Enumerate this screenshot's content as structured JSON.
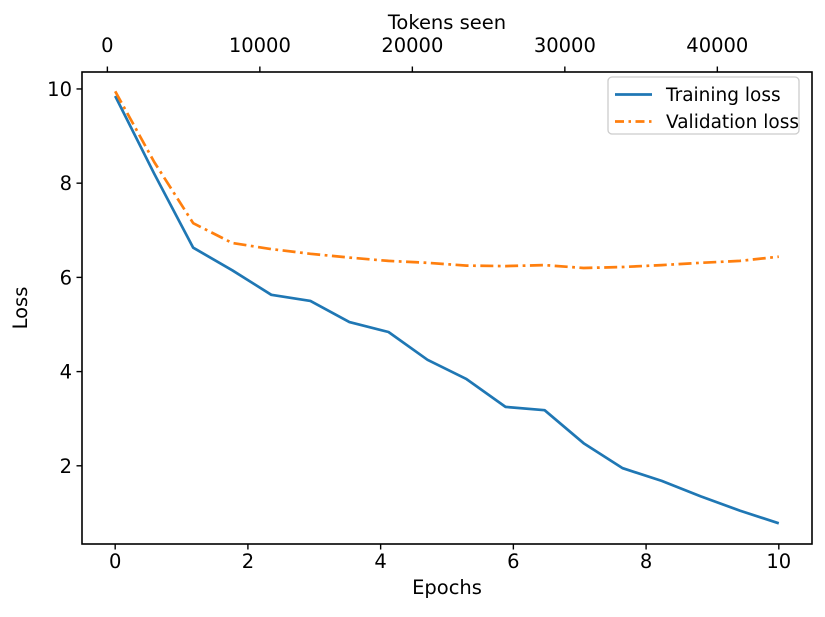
{
  "figure": {
    "background": "#ffffff",
    "text_color": "#000000",
    "spine_color": "#000000",
    "legend_border_color": "#cccccc"
  },
  "chart_data": {
    "type": "line",
    "title": "",
    "top_axis": {
      "label": "Tokens seen",
      "ticks": [
        0,
        10000,
        20000,
        30000,
        40000
      ],
      "tick_labels": [
        "0",
        "10000",
        "20000",
        "30000",
        "40000"
      ],
      "range": [
        -1664,
        46208
      ]
    },
    "x_axis": {
      "label": "Epochs",
      "ticks": [
        0,
        2,
        4,
        6,
        8,
        10
      ],
      "tick_labels": [
        "0",
        "2",
        "4",
        "6",
        "8",
        "10"
      ],
      "range": [
        -0.5,
        10.5
      ]
    },
    "y_axis": {
      "label": "Loss",
      "ticks": [
        2,
        4,
        6,
        8,
        10
      ],
      "tick_labels": [
        "2",
        "4",
        "6",
        "8",
        "10"
      ],
      "range": [
        0.34,
        10.36
      ]
    },
    "x": [
      0,
      0.588,
      1.176,
      1.765,
      2.353,
      2.941,
      3.529,
      4.118,
      4.706,
      5.294,
      5.882,
      6.471,
      7.059,
      7.647,
      8.235,
      8.824,
      9.412,
      10.0
    ],
    "series": [
      {
        "name": "Training loss",
        "color": "#1f77b4",
        "style": "solid",
        "values": [
          9.85,
          8.2,
          6.63,
          6.15,
          5.63,
          5.5,
          5.05,
          4.84,
          4.25,
          3.84,
          3.25,
          3.18,
          2.48,
          1.95,
          1.68,
          1.35,
          1.05,
          0.78
        ]
      },
      {
        "name": "Validation loss",
        "color": "#ff7f0e",
        "style": "dashdot",
        "values": [
          9.95,
          8.45,
          7.15,
          6.73,
          6.6,
          6.5,
          6.42,
          6.35,
          6.31,
          6.25,
          6.24,
          6.26,
          6.2,
          6.22,
          6.26,
          6.31,
          6.35,
          6.44
        ]
      }
    ],
    "legend": {
      "position": "upper right"
    },
    "grid": false
  }
}
